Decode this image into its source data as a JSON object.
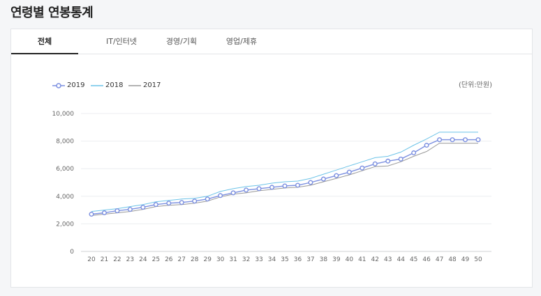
{
  "page": {
    "title": "연령별 연봉통계"
  },
  "tabs": [
    {
      "label": "전체",
      "active": true
    },
    {
      "label": "IT/인터넷",
      "active": false
    },
    {
      "label": "경영/기획",
      "active": false
    },
    {
      "label": "영업/제휴",
      "active": false
    }
  ],
  "unit_label": "(단위:만원)",
  "colors": {
    "s2019": "#7b8fe0",
    "s2018": "#6cc3e8",
    "s2017": "#999999"
  },
  "chart_data": {
    "type": "line",
    "x": [
      20,
      21,
      22,
      23,
      24,
      25,
      26,
      27,
      28,
      29,
      30,
      31,
      32,
      33,
      34,
      35,
      36,
      37,
      38,
      39,
      40,
      41,
      42,
      43,
      44,
      45,
      46,
      47,
      48,
      49,
      50
    ],
    "xtick_labels": [
      "20",
      "21",
      "22",
      "23",
      "24",
      "25",
      "26",
      "27",
      "28",
      "29",
      "30",
      "31",
      "32",
      "33",
      "34",
      "35",
      "36",
      "37",
      "38",
      "39",
      "40",
      "41",
      "42",
      "43",
      "44",
      "45",
      "46",
      "47",
      "48",
      "49",
      "50"
    ],
    "ylim": [
      0,
      10000
    ],
    "yticks": [
      0,
      2000,
      4000,
      6000,
      8000,
      10000
    ],
    "ytick_labels": [
      "0",
      "2,000",
      "4,000",
      "6,000",
      "8,000",
      "10,000"
    ],
    "legend_position": "top-left",
    "grid": true,
    "series": [
      {
        "name": "2019",
        "marker": "circle",
        "values": [
          2700,
          2800,
          2950,
          3050,
          3200,
          3400,
          3500,
          3550,
          3650,
          3800,
          4050,
          4250,
          4450,
          4550,
          4650,
          4750,
          4800,
          5000,
          5250,
          5500,
          5750,
          6050,
          6350,
          6550,
          6700,
          7150,
          7700,
          8100,
          8100,
          8100,
          8100
        ]
      },
      {
        "name": "2018",
        "marker": "none",
        "values": [
          2900,
          3000,
          3100,
          3250,
          3400,
          3600,
          3700,
          3800,
          3850,
          4000,
          4350,
          4550,
          4700,
          4800,
          4950,
          5050,
          5100,
          5300,
          5600,
          5900,
          6200,
          6500,
          6800,
          6900,
          7200,
          7700,
          8150,
          8650,
          8650,
          8650,
          8650
        ]
      },
      {
        "name": "2017",
        "marker": "none",
        "values": [
          2600,
          2700,
          2800,
          2900,
          3050,
          3250,
          3350,
          3400,
          3500,
          3650,
          3950,
          4150,
          4250,
          4400,
          4500,
          4600,
          4650,
          4800,
          5050,
          5300,
          5550,
          5850,
          6150,
          6200,
          6500,
          6900,
          7250,
          7850,
          7850,
          7850,
          7850
        ]
      }
    ]
  }
}
